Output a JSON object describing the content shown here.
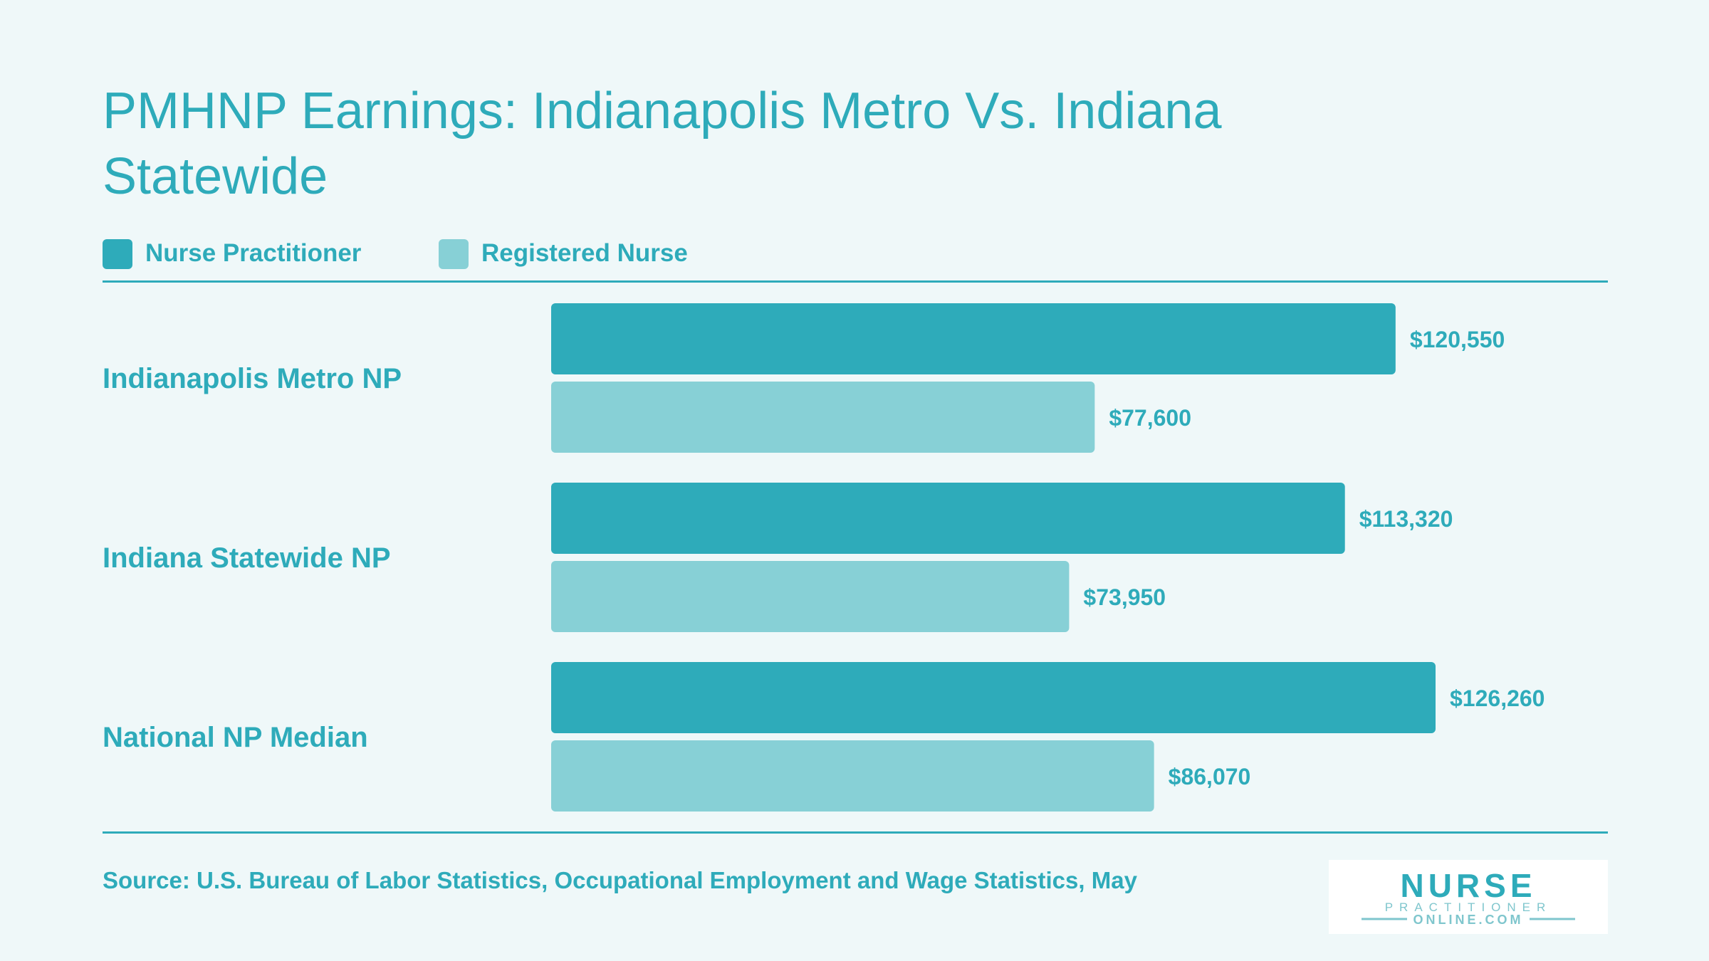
{
  "title": "PMHNP Earnings: Indianapolis Metro Vs. Indiana Statewide",
  "colors": {
    "nurse_practitioner": "#2eabba",
    "registered_nurse": "#87d0d6",
    "text": "#2eabba",
    "background": "#eff8f9"
  },
  "chart_data": {
    "type": "bar",
    "orientation": "horizontal",
    "categories": [
      "Indianapolis Metro NP",
      "Indiana Statewide NP",
      "National NP Median"
    ],
    "series": [
      {
        "name": "Nurse Practitioner",
        "values": [
          120550,
          113320,
          126260
        ],
        "labels": [
          "$120,550",
          "$113,320",
          "$126,260"
        ]
      },
      {
        "name": "Registered Nurse",
        "values": [
          77600,
          73950,
          86070
        ],
        "labels": [
          "$77,600",
          "$73,950",
          "$86,070"
        ]
      }
    ],
    "xlim": [
      0,
      126260
    ],
    "grid": false,
    "legend": "top-left"
  },
  "source": "Source: U.S. Bureau of Labor Statistics, Occupational Employment and Wage Statistics, May",
  "logo": {
    "line1": "NURSE",
    "line2": "PRACTITIONER",
    "line3": "ONLINE.COM"
  }
}
